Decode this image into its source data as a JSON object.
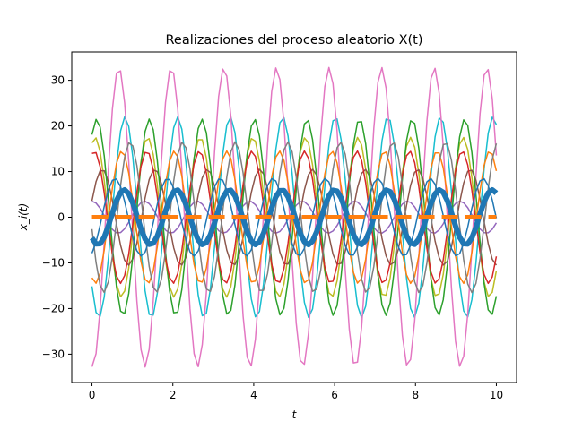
{
  "chart_data": {
    "type": "line",
    "title": "Realizaciones del proceso aleatorio X(t)",
    "xlabel": "t",
    "ylabel": "x_i(t)",
    "xlim": [
      -0.5,
      10.5
    ],
    "ylim": [
      -36.2,
      36.2
    ],
    "x_ticks": [
      0,
      2,
      4,
      6,
      8,
      10
    ],
    "y_ticks": [
      -30,
      -20,
      -10,
      0,
      10,
      20,
      30
    ],
    "grid": false,
    "legend": "none",
    "t_range": [
      0,
      10
    ],
    "samples": 100,
    "period": 1.3,
    "series": [
      {
        "color": "#9467bd",
        "amplitude": 3.5,
        "phase": 1.57,
        "width": 1.5
      },
      {
        "color": "#bcbd22",
        "amplitude": 17.5,
        "phase": 1.2,
        "width": 1.5
      },
      {
        "color": "#17becf",
        "amplitude": 22,
        "phase": 3.9,
        "width": 1.5
      },
      {
        "color": "#e377c2",
        "amplitude": 32.8,
        "phase": 4.65,
        "width": 1.5
      },
      {
        "color": "#8c564b",
        "amplitude": 10.5,
        "phase": 0.35,
        "width": 1.5
      },
      {
        "color": "#2ca02c",
        "amplitude": 21.5,
        "phase": 1.0,
        "width": 1.5
      },
      {
        "color": "#d62728",
        "amplitude": 14.5,
        "phase": 1.3,
        "width": 1.5
      },
      {
        "color": "#ff7f0e",
        "amplitude": 14.5,
        "phase": 4.3,
        "width": 1.5
      },
      {
        "color": "#7f7f7f",
        "amplitude": 16.5,
        "phase": 3.3,
        "width": 1.5
      },
      {
        "color": "#1f77b4",
        "amplitude": 8.5,
        "phase": 5.1,
        "width": 1.5
      }
    ],
    "mean_sample": {
      "color": "#1f77b4",
      "amplitude": 6,
      "phase": 4.0,
      "width": 6
    },
    "mean_theoretical": {
      "color": "#ff7f0e",
      "value": 0,
      "width": 5,
      "style": "dashed"
    }
  }
}
